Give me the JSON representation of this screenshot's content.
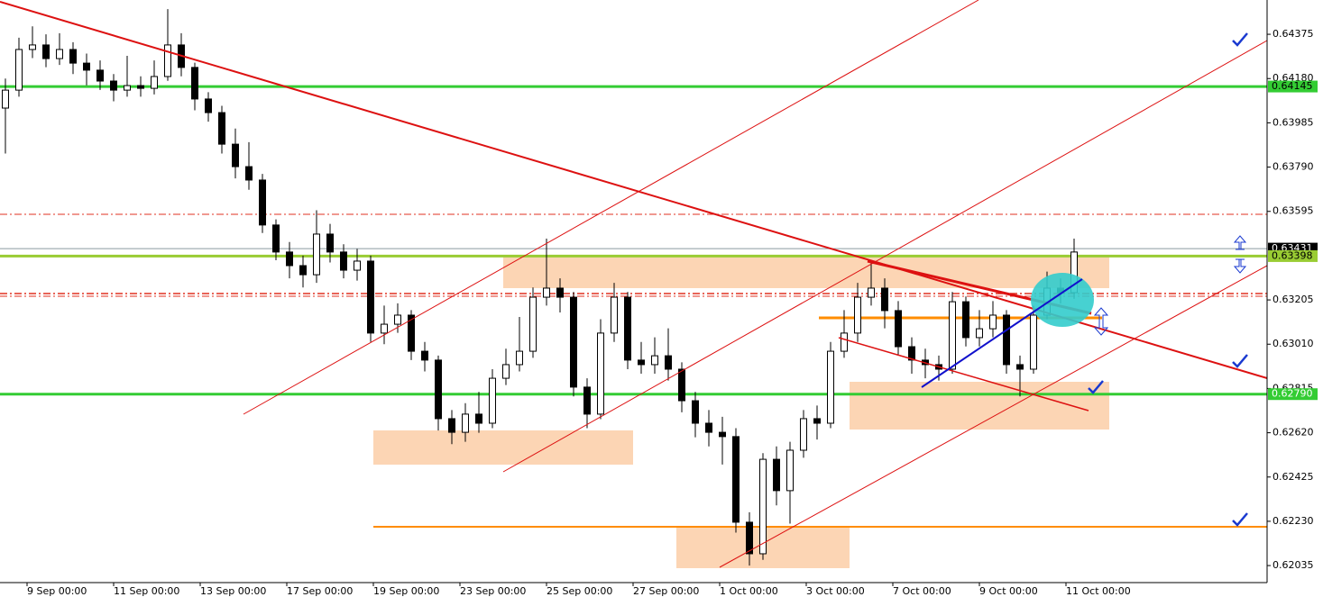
{
  "chart_data": {
    "type": "candlestick",
    "ylim": [
      0.6196,
      0.64526
    ],
    "yticks": [
      0.64375,
      {
        "value": 0.6418,
        "label": "0.64180"
      },
      0.63985,
      {
        "value": 0.6379,
        "label": "0.63790"
      },
      0.63595,
      0.63205,
      {
        "value": 0.6301,
        "label": "0.63010"
      },
      0.62815,
      {
        "value": 0.6262,
        "label": "0.62620"
      },
      0.62425,
      {
        "value": 0.6223,
        "label": "0.62230"
      },
      0.62035
    ],
    "time_labels": [
      "9 Sep 00:00",
      "11 Sep 00:00",
      "13 Sep 00:00",
      "17 Sep 00:00",
      "19 Sep 00:00",
      "23 Sep 00:00",
      "25 Sep 00:00",
      "27 Sep 00:00",
      "1 Oct 00:00",
      "3 Oct 00:00",
      "7 Oct 00:00",
      "9 Oct 00:00",
      "11 Oct 00:00"
    ],
    "levels": [
      {
        "value": 0.64145,
        "color": "#33cc33",
        "text_color": "#000000"
      },
      {
        "value": 0.63431,
        "color": "#000000",
        "text_color": "#ffffff"
      },
      {
        "value": 0.63398,
        "color": "#99cc33",
        "text_color": "#000000"
      },
      {
        "value": 0.6279,
        "label": "0.62790",
        "color": "#33cc33",
        "text_color": "#ffffff"
      }
    ],
    "candles": {
      "open": [
        0.6405,
        0.64129,
        0.64308,
        0.64328,
        0.64268,
        0.64308,
        0.64248,
        0.64217,
        0.64169,
        0.64129,
        0.64149,
        0.64137,
        0.64189,
        0.64328,
        0.64229,
        0.6409,
        0.6403,
        0.63891,
        0.63792,
        0.63733,
        0.63535,
        0.63416,
        0.63356,
        0.63316,
        0.63495,
        0.63416,
        0.63336,
        0.63376,
        0.63059,
        0.63098,
        0.63138,
        0.62979,
        0.6294,
        0.62682,
        0.62622,
        0.62702,
        0.62662,
        0.6286,
        0.6292,
        0.62979,
        0.63217,
        0.63257,
        0.63217,
        0.62821,
        0.62702,
        0.63059,
        0.63217,
        0.6294,
        0.6292,
        0.62959,
        0.629,
        0.62761,
        0.62662,
        0.62622,
        0.62603,
        0.62226,
        0.62087,
        0.62503,
        0.62365,
        0.62543,
        0.62682,
        0.62662,
        0.62979,
        0.63059,
        0.63217,
        0.63257,
        0.63158,
        0.62999,
        0.6294,
        0.6292,
        0.629,
        0.63197,
        0.63039,
        0.63078,
        0.63138,
        0.6292,
        0.629,
        0.63138,
        0.63257,
        0.63237
      ],
      "high": [
        0.6418,
        0.6436,
        0.6441,
        0.64375,
        0.6438,
        0.6434,
        0.6429,
        0.6426,
        0.642,
        0.6428,
        0.6419,
        0.6426,
        0.64486,
        0.6438,
        0.6425,
        0.6412,
        0.6406,
        0.6396,
        0.639,
        0.6376,
        0.6356,
        0.6346,
        0.634,
        0.636,
        0.6354,
        0.6345,
        0.6343,
        0.634,
        0.6318,
        0.6319,
        0.6316,
        0.6302,
        0.6296,
        0.6272,
        0.6275,
        0.628,
        0.629,
        0.6299,
        0.6313,
        0.6326,
        0.63475,
        0.633,
        0.6324,
        0.6286,
        0.6312,
        0.6328,
        0.6324,
        0.6302,
        0.6304,
        0.6308,
        0.6293,
        0.628,
        0.6272,
        0.6269,
        0.6264,
        0.6227,
        0.6253,
        0.6256,
        0.6258,
        0.6272,
        0.6274,
        0.6302,
        0.6316,
        0.6328,
        0.63376,
        0.633,
        0.632,
        0.6304,
        0.6299,
        0.6296,
        0.6324,
        0.6322,
        0.6316,
        0.632,
        0.6316,
        0.6296,
        0.6318,
        0.6333,
        0.633,
        0.63475
      ],
      "low": [
        0.6385,
        0.641,
        0.6427,
        0.6423,
        0.6424,
        0.642,
        0.6415,
        0.6413,
        0.6408,
        0.641,
        0.641,
        0.6411,
        0.6417,
        0.6419,
        0.6404,
        0.6399,
        0.6385,
        0.6374,
        0.6369,
        0.635,
        0.6338,
        0.633,
        0.6326,
        0.6328,
        0.6337,
        0.633,
        0.6329,
        0.6302,
        0.6301,
        0.6306,
        0.6294,
        0.6289,
        0.6263,
        0.6257,
        0.6258,
        0.6262,
        0.6264,
        0.6283,
        0.6289,
        0.6295,
        0.6318,
        0.6315,
        0.6278,
        0.6264,
        0.6268,
        0.6302,
        0.629,
        0.6288,
        0.6288,
        0.6285,
        0.6271,
        0.626,
        0.6256,
        0.6248,
        0.6218,
        0.62035,
        0.6206,
        0.623,
        0.6222,
        0.6251,
        0.6259,
        0.6264,
        0.6295,
        0.6302,
        0.6318,
        0.6308,
        0.6296,
        0.6288,
        0.6286,
        0.6285,
        0.6288,
        0.63,
        0.63,
        0.6304,
        0.6288,
        0.6278,
        0.6288,
        0.6312,
        0.6319,
        0.6321
      ],
      "close": [
        0.64129,
        0.64308,
        0.64328,
        0.64268,
        0.64308,
        0.64248,
        0.64217,
        0.64169,
        0.64129,
        0.64149,
        0.64137,
        0.64189,
        0.64328,
        0.64229,
        0.6409,
        0.6403,
        0.63891,
        0.63792,
        0.63733,
        0.63535,
        0.63416,
        0.63356,
        0.63316,
        0.63495,
        0.63416,
        0.63336,
        0.63376,
        0.63059,
        0.63098,
        0.63138,
        0.62979,
        0.6294,
        0.62682,
        0.62622,
        0.62702,
        0.62662,
        0.6286,
        0.6292,
        0.62979,
        0.63217,
        0.63257,
        0.63217,
        0.62821,
        0.62702,
        0.63059,
        0.63217,
        0.6294,
        0.6292,
        0.62959,
        0.629,
        0.62761,
        0.62662,
        0.62622,
        0.62603,
        0.62226,
        0.62087,
        0.62503,
        0.62365,
        0.62543,
        0.62682,
        0.62662,
        0.62979,
        0.63059,
        0.63217,
        0.63257,
        0.63158,
        0.62999,
        0.6294,
        0.6292,
        0.629,
        0.63197,
        0.63039,
        0.63078,
        0.63138,
        0.6292,
        0.629,
        0.63138,
        0.63257,
        0.63237,
        0.63416
      ]
    }
  }
}
